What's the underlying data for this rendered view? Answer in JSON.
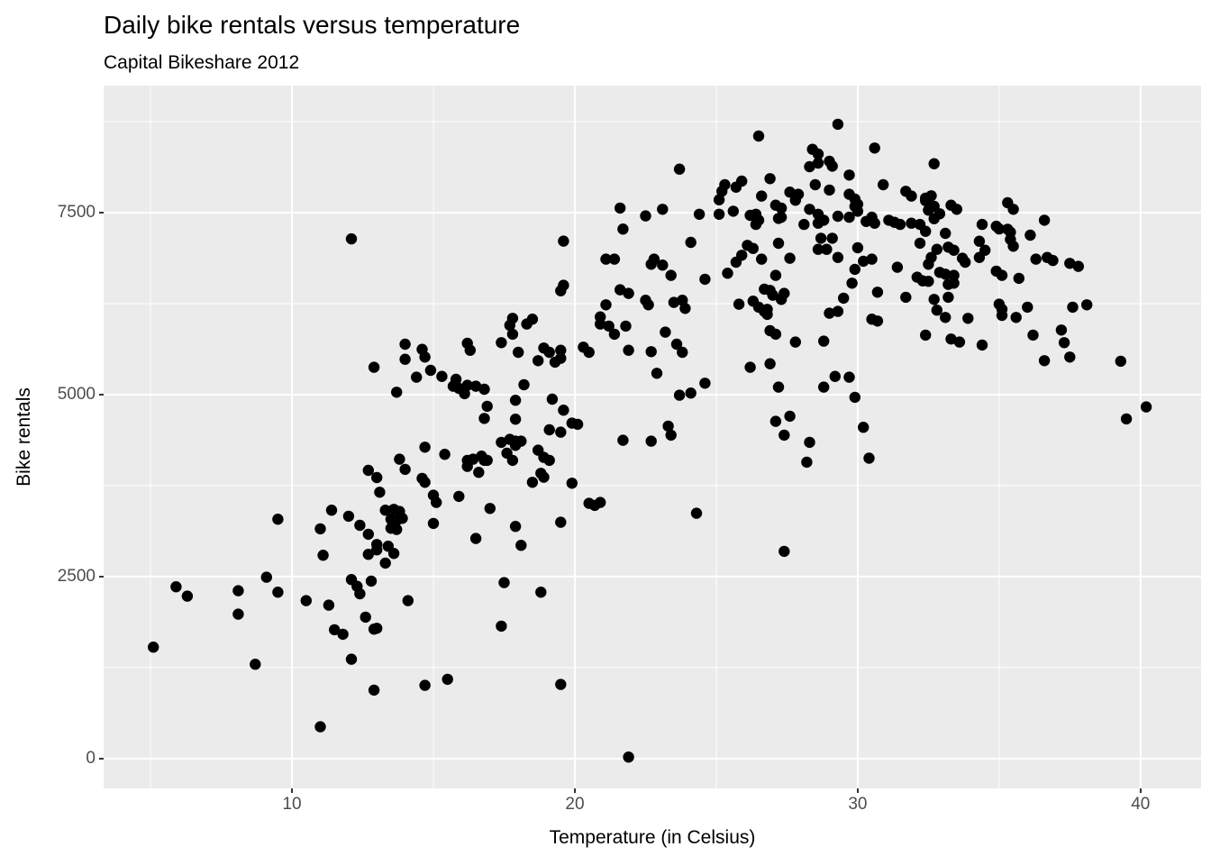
{
  "title": "Daily bike rentals versus temperature",
  "subtitle": "Capital Bikeshare 2012",
  "chart_data": {
    "type": "scatter",
    "title": "Daily bike rentals versus temperature",
    "subtitle": "Capital Bikeshare 2012",
    "xlabel": "Temperature (in Celsius)",
    "ylabel": "Bike rentals",
    "x_ticks": [
      10,
      20,
      30,
      40
    ],
    "x_minor_ticks": [
      5,
      15,
      25,
      35
    ],
    "y_ticks": [
      0,
      2500,
      5000,
      7500
    ],
    "y_minor_ticks": [
      1250,
      3750,
      6250,
      8750
    ],
    "xlim": [
      3.34,
      42.14
    ],
    "ylim": [
      -410,
      9245
    ],
    "grid": true,
    "legend": "none",
    "panel_bg": "#EBEBEB",
    "grid_color": "#FFFFFF",
    "point_color": "#000000",
    "point_radius": 6.2,
    "points": [
      [
        12.1,
        7140
      ],
      [
        21.6,
        7563
      ],
      [
        22.5,
        7455
      ],
      [
        21.7,
        7274
      ],
      [
        19.6,
        7108
      ],
      [
        21.1,
        6861
      ],
      [
        21.4,
        6861
      ],
      [
        22.7,
        6791
      ],
      [
        19.6,
        6502
      ],
      [
        19.5,
        6427
      ],
      [
        21.6,
        6440
      ],
      [
        21.9,
        6390
      ],
      [
        22.5,
        6296
      ],
      [
        22.6,
        6234
      ],
      [
        21.1,
        6234
      ],
      [
        20.9,
        6068
      ],
      [
        17.8,
        6048
      ],
      [
        18.5,
        6036
      ],
      [
        29.3,
        8714
      ],
      [
        26.5,
        8552
      ],
      [
        30.6,
        8387
      ],
      [
        28.4,
        8370
      ],
      [
        28.6,
        8304
      ],
      [
        23.7,
        8098
      ],
      [
        28.3,
        8131
      ],
      [
        28.6,
        8180
      ],
      [
        29.0,
        8205
      ],
      [
        29.1,
        8139
      ],
      [
        29.7,
        8016
      ],
      [
        30.9,
        7884
      ],
      [
        26.9,
        7966
      ],
      [
        25.9,
        7933
      ],
      [
        25.7,
        7850
      ],
      [
        25.3,
        7884
      ],
      [
        25.2,
        7793
      ],
      [
        25.1,
        7677
      ],
      [
        28.5,
        7884
      ],
      [
        29.0,
        7810
      ],
      [
        26.6,
        7727
      ],
      [
        27.6,
        7782
      ],
      [
        27.9,
        7752
      ],
      [
        27.8,
        7670
      ],
      [
        31.7,
        7793
      ],
      [
        31.9,
        7727
      ],
      [
        32.4,
        7699
      ],
      [
        29.7,
        7752
      ],
      [
        29.9,
        7686
      ],
      [
        30.0,
        7616
      ],
      [
        27.1,
        7602
      ],
      [
        27.3,
        7561
      ],
      [
        23.1,
        7545
      ],
      [
        24.4,
        7478
      ],
      [
        25.1,
        7478
      ],
      [
        25.6,
        7520
      ],
      [
        26.2,
        7462
      ],
      [
        26.4,
        7478
      ],
      [
        26.5,
        7396
      ],
      [
        26.4,
        7338
      ],
      [
        27.2,
        7421
      ],
      [
        27.3,
        7437
      ],
      [
        28.3,
        7545
      ],
      [
        28.6,
        7478
      ],
      [
        28.8,
        7396
      ],
      [
        29.3,
        7450
      ],
      [
        29.7,
        7437
      ],
      [
        30.0,
        7520
      ],
      [
        29.9,
        7586
      ],
      [
        30.3,
        7378
      ],
      [
        30.5,
        7437
      ],
      [
        30.6,
        7355
      ],
      [
        31.1,
        7396
      ],
      [
        31.3,
        7367
      ],
      [
        31.5,
        7338
      ],
      [
        31.9,
        7355
      ],
      [
        32.2,
        7338
      ],
      [
        28.1,
        7338
      ],
      [
        28.6,
        7355
      ],
      [
        28.7,
        7148
      ],
      [
        29.1,
        7148
      ],
      [
        28.6,
        6996
      ],
      [
        28.9,
        6996
      ],
      [
        29.3,
        6884
      ],
      [
        30.0,
        7017
      ],
      [
        24.1,
        7091
      ],
      [
        26.1,
        7050
      ],
      [
        26.3,
        7008
      ],
      [
        27.2,
        7079
      ],
      [
        25.9,
        6914
      ],
      [
        25.7,
        6819
      ],
      [
        26.6,
        6861
      ],
      [
        27.6,
        6873
      ],
      [
        22.8,
        6861
      ],
      [
        23.1,
        6779
      ],
      [
        23.4,
        6638
      ],
      [
        24.6,
        6585
      ],
      [
        25.4,
        6668
      ],
      [
        27.1,
        6638
      ],
      [
        29.9,
        6721
      ],
      [
        30.2,
        6832
      ],
      [
        30.5,
        6861
      ],
      [
        31.4,
        6749
      ],
      [
        32.1,
        6613
      ],
      [
        32.3,
        6563
      ],
      [
        29.8,
        6531
      ],
      [
        26.7,
        6449
      ],
      [
        26.9,
        6432
      ],
      [
        27.0,
        6366
      ],
      [
        27.4,
        6390
      ],
      [
        27.3,
        6308
      ],
      [
        29.5,
        6325
      ],
      [
        30.7,
        6407
      ],
      [
        25.8,
        6242
      ],
      [
        26.3,
        6284
      ],
      [
        23.5,
        6267
      ],
      [
        23.8,
        6296
      ],
      [
        23.9,
        6184
      ],
      [
        26.5,
        6201
      ],
      [
        26.7,
        6143
      ],
      [
        26.8,
        6172
      ],
      [
        26.8,
        6102
      ],
      [
        29.0,
        6118
      ],
      [
        29.3,
        6143
      ],
      [
        30.5,
        6036
      ],
      [
        31.7,
        6337
      ],
      [
        30.7,
        6010
      ],
      [
        32.4,
        7243
      ],
      [
        32.2,
        7080
      ],
      [
        32.7,
        8172
      ],
      [
        32.6,
        7731
      ],
      [
        32.4,
        7664
      ],
      [
        32.7,
        7586
      ],
      [
        32.5,
        7533
      ],
      [
        32.9,
        7483
      ],
      [
        32.7,
        7417
      ],
      [
        33.3,
        7602
      ],
      [
        33.5,
        7545
      ],
      [
        35.3,
        7636
      ],
      [
        35.5,
        7545
      ],
      [
        36.6,
        7396
      ],
      [
        34.4,
        7338
      ],
      [
        34.9,
        7313
      ],
      [
        35.0,
        7276
      ],
      [
        35.3,
        7272
      ],
      [
        35.4,
        7231
      ],
      [
        33.1,
        7215
      ],
      [
        36.1,
        7190
      ],
      [
        34.3,
        7107
      ],
      [
        35.4,
        7132
      ],
      [
        35.5,
        7038
      ],
      [
        32.8,
        6996
      ],
      [
        33.2,
        7025
      ],
      [
        33.4,
        6983
      ],
      [
        34.5,
        6983
      ],
      [
        34.3,
        6884
      ],
      [
        32.6,
        6884
      ],
      [
        32.5,
        6790
      ],
      [
        33.7,
        6873
      ],
      [
        33.8,
        6819
      ],
      [
        36.3,
        6861
      ],
      [
        36.7,
        6884
      ],
      [
        36.9,
        6843
      ],
      [
        37.5,
        6803
      ],
      [
        37.8,
        6762
      ],
      [
        32.9,
        6679
      ],
      [
        33.1,
        6654
      ],
      [
        33.4,
        6638
      ],
      [
        34.9,
        6696
      ],
      [
        35.1,
        6638
      ],
      [
        35.7,
        6597
      ],
      [
        32.5,
        6556
      ],
      [
        33.2,
        6514
      ],
      [
        33.4,
        6531
      ],
      [
        32.7,
        6308
      ],
      [
        33.2,
        6337
      ],
      [
        35.0,
        6242
      ],
      [
        35.1,
        6172
      ],
      [
        35.1,
        6089
      ],
      [
        35.6,
        6060
      ],
      [
        36.0,
        6201
      ],
      [
        37.6,
        6201
      ],
      [
        38.1,
        6234
      ],
      [
        32.8,
        6160
      ],
      [
        33.1,
        6060
      ],
      [
        33.9,
        6048
      ],
      [
        12.9,
        5375
      ],
      [
        12.7,
        3960
      ],
      [
        13.0,
        3861
      ],
      [
        9.5,
        3288
      ],
      [
        11.4,
        3412
      ],
      [
        12.0,
        3329
      ],
      [
        12.4,
        3205
      ],
      [
        12.7,
        3082
      ],
      [
        11.0,
        3156
      ],
      [
        13.0,
        2941
      ],
      [
        11.1,
        2793
      ],
      [
        12.7,
        2806
      ],
      [
        14.0,
        5693
      ],
      [
        14.0,
        5486
      ],
      [
        14.6,
        5622
      ],
      [
        14.7,
        5516
      ],
      [
        16.2,
        5705
      ],
      [
        16.3,
        5610
      ],
      [
        17.7,
        5953
      ],
      [
        17.8,
        5830
      ],
      [
        17.4,
        5714
      ],
      [
        18.3,
        5970
      ],
      [
        18.0,
        5581
      ],
      [
        18.7,
        5466
      ],
      [
        18.9,
        5639
      ],
      [
        19.1,
        5581
      ],
      [
        19.5,
        5610
      ],
      [
        19.5,
        5499
      ],
      [
        19.3,
        5446
      ],
      [
        20.3,
        5652
      ],
      [
        20.5,
        5581
      ],
      [
        20.9,
        5970
      ],
      [
        21.2,
        5941
      ],
      [
        21.4,
        5830
      ],
      [
        21.8,
        5941
      ],
      [
        21.9,
        5610
      ],
      [
        22.7,
        5590
      ],
      [
        14.4,
        5239
      ],
      [
        14.9,
        5334
      ],
      [
        15.3,
        5251
      ],
      [
        15.8,
        5210
      ],
      [
        15.7,
        5116
      ],
      [
        15.9,
        5086
      ],
      [
        16.2,
        5128
      ],
      [
        16.5,
        5116
      ],
      [
        16.1,
        5013
      ],
      [
        16.8,
        5074
      ],
      [
        16.9,
        4840
      ],
      [
        16.8,
        4673
      ],
      [
        13.7,
        5033
      ],
      [
        18.2,
        5136
      ],
      [
        17.9,
        4923
      ],
      [
        17.9,
        4662
      ],
      [
        19.2,
        4938
      ],
      [
        19.6,
        4786
      ],
      [
        19.9,
        4608
      ],
      [
        20.1,
        4592
      ],
      [
        19.1,
        4517
      ],
      [
        19.5,
        4484
      ],
      [
        21.7,
        4373
      ],
      [
        22.7,
        4360
      ],
      [
        17.4,
        4344
      ],
      [
        17.7,
        4385
      ],
      [
        17.9,
        4360
      ],
      [
        18.1,
        4360
      ],
      [
        17.9,
        4303
      ],
      [
        17.6,
        4196
      ],
      [
        17.8,
        4097
      ],
      [
        18.7,
        4237
      ],
      [
        18.9,
        4138
      ],
      [
        19.1,
        4097
      ],
      [
        14.7,
        4278
      ],
      [
        15.4,
        4180
      ],
      [
        13.8,
        4113
      ],
      [
        14.0,
        3973
      ],
      [
        16.2,
        4097
      ],
      [
        16.2,
        4014
      ],
      [
        16.4,
        4113
      ],
      [
        16.7,
        4155
      ],
      [
        16.8,
        4097
      ],
      [
        16.9,
        4097
      ],
      [
        16.6,
        3932
      ],
      [
        18.5,
        3795
      ],
      [
        18.8,
        3919
      ],
      [
        18.9,
        3865
      ],
      [
        14.6,
        3849
      ],
      [
        14.7,
        3795
      ],
      [
        13.1,
        3659
      ],
      [
        19.9,
        3783
      ],
      [
        15.0,
        3618
      ],
      [
        15.1,
        3519
      ],
      [
        15.0,
        3230
      ],
      [
        15.9,
        3602
      ],
      [
        13.3,
        3412
      ],
      [
        13.6,
        3424
      ],
      [
        13.8,
        3395
      ],
      [
        13.5,
        3288
      ],
      [
        13.7,
        3271
      ],
      [
        13.9,
        3300
      ],
      [
        17.0,
        3436
      ],
      [
        20.5,
        3506
      ],
      [
        20.7,
        3478
      ],
      [
        20.9,
        3519
      ],
      [
        19.5,
        3246
      ],
      [
        13.5,
        3164
      ],
      [
        13.7,
        3147
      ],
      [
        17.9,
        3189
      ],
      [
        16.5,
        3024
      ],
      [
        18.1,
        2930
      ],
      [
        13.4,
        2917
      ],
      [
        13.6,
        2818
      ],
      [
        13.0,
        2868
      ],
      [
        23.2,
        5858
      ],
      [
        23.6,
        5693
      ],
      [
        23.8,
        5581
      ],
      [
        22.9,
        5293
      ],
      [
        24.6,
        5157
      ],
      [
        23.7,
        4992
      ],
      [
        24.1,
        5021
      ],
      [
        26.2,
        5375
      ],
      [
        26.9,
        5424
      ],
      [
        26.9,
        5878
      ],
      [
        27.1,
        5830
      ],
      [
        27.8,
        5722
      ],
      [
        28.8,
        5735
      ],
      [
        27.2,
        5103
      ],
      [
        28.8,
        5103
      ],
      [
        29.2,
        5251
      ],
      [
        29.7,
        5239
      ],
      [
        29.9,
        4963
      ],
      [
        27.1,
        4633
      ],
      [
        27.6,
        4703
      ],
      [
        27.4,
        4443
      ],
      [
        28.3,
        4344
      ],
      [
        28.2,
        4072
      ],
      [
        23.3,
        4567
      ],
      [
        23.4,
        4443
      ],
      [
        30.2,
        4551
      ],
      [
        30.4,
        4126
      ],
      [
        24.3,
        3370
      ],
      [
        27.4,
        2847
      ],
      [
        32.4,
        5817
      ],
      [
        33.3,
        5763
      ],
      [
        33.6,
        5722
      ],
      [
        34.4,
        5681
      ],
      [
        36.2,
        5817
      ],
      [
        37.2,
        5887
      ],
      [
        37.3,
        5714
      ],
      [
        37.5,
        5516
      ],
      [
        36.6,
        5466
      ],
      [
        39.3,
        5458
      ],
      [
        40.2,
        4831
      ],
      [
        39.5,
        4666
      ],
      [
        5.9,
        2360
      ],
      [
        6.3,
        2231
      ],
      [
        9.1,
        2491
      ],
      [
        8.1,
        2306
      ],
      [
        9.5,
        2286
      ],
      [
        8.1,
        1984
      ],
      [
        12.1,
        2459
      ],
      [
        12.3,
        2367
      ],
      [
        12.4,
        2264
      ],
      [
        12.8,
        2438
      ],
      [
        10.5,
        2170
      ],
      [
        11.3,
        2108
      ],
      [
        12.6,
        1943
      ],
      [
        12.9,
        1778
      ],
      [
        11.5,
        1770
      ],
      [
        11.8,
        1708
      ],
      [
        5.1,
        1531
      ],
      [
        8.7,
        1296
      ],
      [
        12.1,
        1365
      ],
      [
        12.9,
        941
      ],
      [
        11.0,
        437
      ],
      [
        13.3,
        2686
      ],
      [
        14.1,
        2170
      ],
      [
        13.0,
        1790
      ],
      [
        17.5,
        2417
      ],
      [
        18.8,
        2286
      ],
      [
        17.4,
        1819
      ],
      [
        15.5,
        1089
      ],
      [
        14.7,
        1006
      ],
      [
        19.5,
        1019
      ],
      [
        21.9,
        21
      ]
    ]
  }
}
